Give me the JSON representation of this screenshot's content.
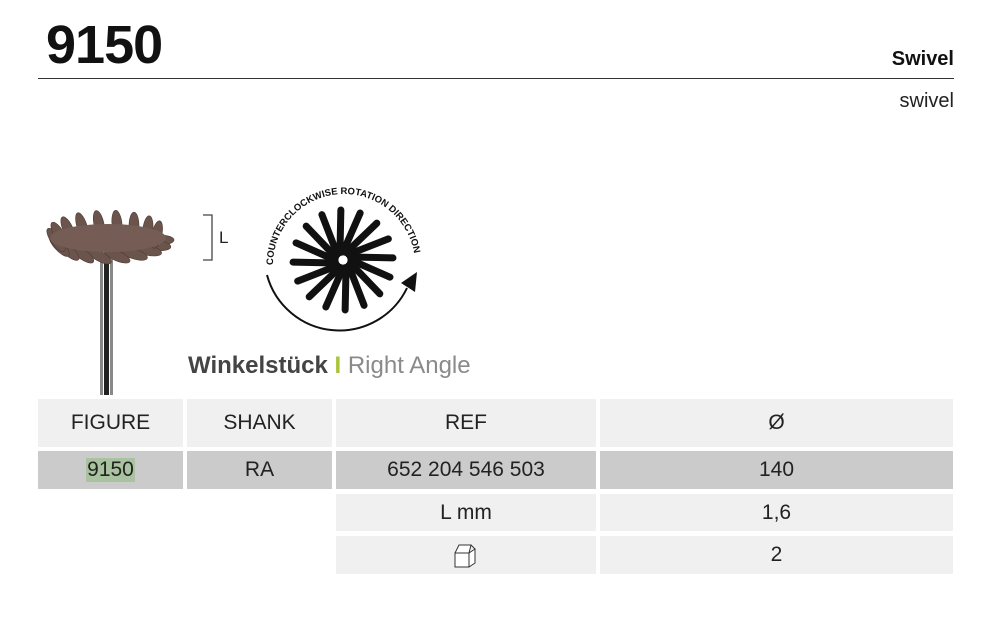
{
  "header": {
    "title": "9150",
    "subtitle_bold": "Swivel",
    "subtitle": "swivel"
  },
  "figure": {
    "length_label": "L",
    "rotation_text": "COUNTERCLOCKWISE ROTATION DIRECTION"
  },
  "caption": {
    "german": "Winkelstück",
    "separator": "I",
    "english": "Right Angle"
  },
  "table": {
    "headers": [
      "FIGURE",
      "SHANK",
      "REF",
      "Ø"
    ],
    "row": [
      "9150",
      "RA",
      "652 204 546 503",
      "140"
    ],
    "extra": [
      {
        "label": "L mm",
        "value": "1,6"
      },
      {
        "label_icon": "package-box-icon",
        "value": "2"
      }
    ]
  },
  "colors": {
    "accent": "#a8c43a",
    "highlight": "#a9c29f",
    "burr": "#6b544c"
  }
}
